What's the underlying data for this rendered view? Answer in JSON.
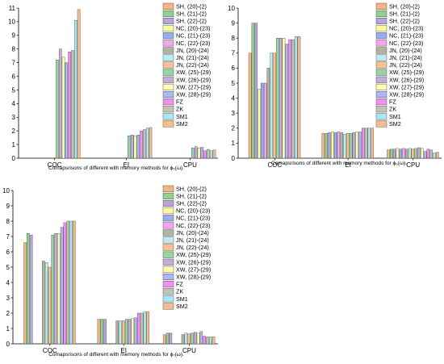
{
  "legend": [
    "SH, (20)-(2)",
    "SH, (21)-(2)",
    "SH, (22)-(2)",
    "NC, (20)-(23)",
    "NC, (21)-(23)",
    "NC, (22)-(23)",
    "JN, (20)-(24)",
    "JN, (21)-(24)",
    "JN, (22)-(24)",
    "XW, (25)-(29)",
    "XW, (26)-(29)",
    "XW, (27)-(29)",
    "XW, (28)-(29)",
    "FZ",
    "ZK",
    "SM1",
    "SM2"
  ],
  "colors": [
    "#f7b580",
    "#8fd18f",
    "#b7a6de",
    "#fdfda0",
    "#95aef0",
    "#f5a6ee",
    "#b3b3a3",
    "#bdebf2",
    "#f7c28f",
    "#95d6a3",
    "#c4aed9",
    "#fdfdb2",
    "#aab9f2",
    "#f28ff2",
    "#c4c4b3",
    "#a9e6f2",
    "#f5bc8c"
  ],
  "chart_data": [
    {
      "type": "bar",
      "title": "Comapsrisons of different with memory methods for ϕ₅(ω).",
      "categories": [
        "COC",
        "EI",
        "CPU"
      ],
      "ylim": [
        0,
        11
      ],
      "yticks": [
        0,
        1,
        2,
        3,
        4,
        5,
        6,
        7,
        8,
        9,
        10,
        11
      ],
      "legend_position": "top-right",
      "series": [
        {
          "name": "SH, (20)-(2)",
          "values": [
            null,
            null,
            null
          ]
        },
        {
          "name": "SH, (21)-(2)",
          "values": [
            null,
            null,
            null
          ]
        },
        {
          "name": "SH, (22)-(2)",
          "values": [
            null,
            null,
            null
          ]
        },
        {
          "name": "NC, (20)-(23)",
          "values": [
            null,
            null,
            null
          ]
        },
        {
          "name": "NC, (21)-(23)",
          "values": [
            null,
            null,
            null
          ]
        },
        {
          "name": "NC, (22)-(23)",
          "values": [
            null,
            null,
            null
          ]
        },
        {
          "name": "JN, (20)-(24)",
          "values": [
            null,
            null,
            null
          ]
        },
        {
          "name": "JN, (21)-(24)",
          "values": [
            null,
            null,
            null
          ]
        },
        {
          "name": "JN, (22)-(24)",
          "values": [
            null,
            null,
            null
          ]
        },
        {
          "name": "XW, (25)-(29)",
          "values": [
            7.2,
            1.65,
            0.75
          ]
        },
        {
          "name": "XW, (26)-(29)",
          "values": [
            8.0,
            1.7,
            0.85
          ]
        },
        {
          "name": "XW, (27)-(29)",
          "values": [
            7.4,
            1.65,
            0.75
          ]
        },
        {
          "name": "XW, (28)-(29)",
          "values": [
            7.0,
            1.7,
            0.8
          ]
        },
        {
          "name": "FZ",
          "values": [
            7.8,
            2.0,
            0.55
          ]
        },
        {
          "name": "ZK",
          "values": [
            7.9,
            2.1,
            0.65
          ]
        },
        {
          "name": "SM1",
          "values": [
            10.1,
            2.2,
            0.55
          ]
        },
        {
          "name": "SM2",
          "values": [
            10.9,
            2.25,
            0.6
          ]
        }
      ]
    },
    {
      "type": "bar",
      "title": "Comapsrisons of different with memory methods for ϕ₆(ω).",
      "categories": [
        "COC",
        "EI",
        "CPU"
      ],
      "ylim": [
        0,
        10
      ],
      "yticks": [
        0,
        1,
        2,
        3,
        4,
        5,
        6,
        7,
        8,
        9,
        10
      ],
      "legend_position": "top-right",
      "series": [
        {
          "name": "SH, (20)-(2)",
          "values": [
            7.0,
            1.65,
            0.55
          ]
        },
        {
          "name": "SH, (21)-(2)",
          "values": [
            9.0,
            1.65,
            0.6
          ]
        },
        {
          "name": "SH, (22)-(2)",
          "values": [
            9.0,
            1.7,
            0.6
          ]
        },
        {
          "name": "NC, (20)-(23)",
          "values": [
            4.6,
            1.75,
            0.65
          ]
        },
        {
          "name": "NC, (21)-(23)",
          "values": [
            5.0,
            1.7,
            0.6
          ]
        },
        {
          "name": "NC, (22)-(23)",
          "values": [
            5.0,
            1.75,
            0.65
          ]
        },
        {
          "name": "JN, (20)-(24)",
          "values": [
            6.0,
            1.7,
            0.6
          ]
        },
        {
          "name": "JN, (21)-(24)",
          "values": [
            7.0,
            1.6,
            0.65
          ]
        },
        {
          "name": "JN, (22)-(24)",
          "values": [
            7.0,
            1.65,
            0.6
          ]
        },
        {
          "name": "XW, (25)-(29)",
          "values": [
            8.0,
            1.65,
            0.65
          ]
        },
        {
          "name": "XW, (26)-(29)",
          "values": [
            8.0,
            1.7,
            0.7
          ]
        },
        {
          "name": "XW, (27)-(29)",
          "values": [
            8.0,
            1.75,
            0.65
          ]
        },
        {
          "name": "XW, (28)-(29)",
          "values": [
            7.6,
            1.75,
            0.45
          ]
        },
        {
          "name": "FZ",
          "values": [
            7.9,
            2.0,
            0.6
          ]
        },
        {
          "name": "ZK",
          "values": [
            7.9,
            2.0,
            0.55
          ]
        },
        {
          "name": "SM1",
          "values": [
            8.1,
            2.0,
            0.35
          ]
        },
        {
          "name": "SM2",
          "values": [
            8.1,
            2.0,
            0.4
          ]
        }
      ]
    },
    {
      "type": "bar",
      "title": "Comapsrisons of different with memory methods for ϕ₇(ω).",
      "categories": [
        "COC",
        "EI",
        "CPU"
      ],
      "ylim": [
        0,
        10
      ],
      "yticks": [
        0,
        1,
        2,
        3,
        4,
        5,
        6,
        7,
        8,
        9,
        10
      ],
      "legend_position": "top-right",
      "series": [
        {
          "name": "SH, (20)-(2)",
          "values": [
            6.6,
            1.6,
            0.6
          ]
        },
        {
          "name": "SH, (21)-(2)",
          "values": [
            7.2,
            1.6,
            0.7
          ]
        },
        {
          "name": "SH, (22)-(2)",
          "values": [
            7.1,
            1.6,
            0.7
          ]
        },
        {
          "name": "NC, (20)-(23)",
          "values": [
            null,
            null,
            null
          ]
        },
        {
          "name": "NC, (21)-(23)",
          "values": [
            null,
            null,
            null
          ]
        },
        {
          "name": "NC, (22)-(23)",
          "values": [
            null,
            null,
            null
          ]
        },
        {
          "name": "JN, (20)-(24)",
          "values": [
            5.4,
            1.5,
            0.6
          ]
        },
        {
          "name": "JN, (21)-(24)",
          "values": [
            5.3,
            1.5,
            0.7
          ]
        },
        {
          "name": "JN, (22)-(24)",
          "values": [
            5.0,
            1.5,
            0.65
          ]
        },
        {
          "name": "XW, (25)-(29)",
          "values": [
            7.1,
            1.6,
            0.7
          ]
        },
        {
          "name": "XW, (26)-(29)",
          "values": [
            7.2,
            1.6,
            0.75
          ]
        },
        {
          "name": "XW, (27)-(29)",
          "values": [
            7.2,
            1.65,
            0.7
          ]
        },
        {
          "name": "XW, (28)-(29)",
          "values": [
            7.6,
            1.7,
            0.8
          ]
        },
        {
          "name": "FZ",
          "values": [
            7.9,
            2.0,
            0.5
          ]
        },
        {
          "name": "ZK",
          "values": [
            8.0,
            2.0,
            0.45
          ]
        },
        {
          "name": "SM1",
          "values": [
            8.0,
            2.1,
            0.45
          ]
        },
        {
          "name": "SM2",
          "values": [
            8.0,
            2.1,
            0.45
          ]
        }
      ]
    }
  ]
}
